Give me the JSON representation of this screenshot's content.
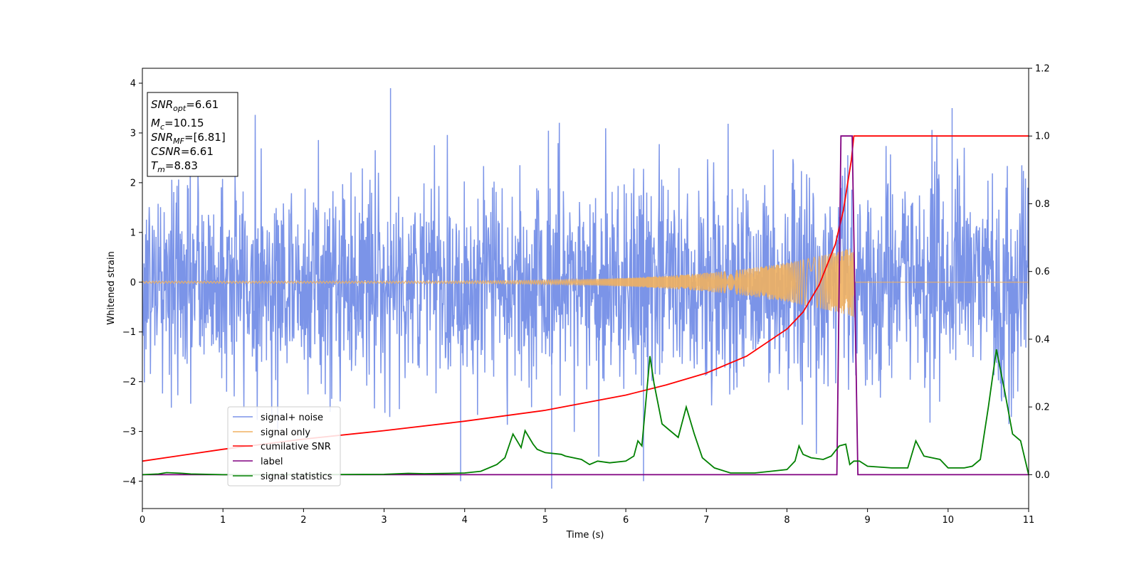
{
  "chart_data": {
    "type": "line",
    "xlabel": "Time (s)",
    "ylabel": "Whitened strain",
    "xlim": [
      0,
      11
    ],
    "ylim_left": [
      -4.55,
      4.3
    ],
    "ylim_right": [
      -0.1,
      1.2
    ],
    "x_ticks": [
      0,
      1,
      2,
      3,
      4,
      5,
      6,
      7,
      8,
      9,
      10,
      11
    ],
    "y_ticks_left": [
      -4,
      -3,
      -2,
      -1,
      0,
      1,
      2,
      3,
      4
    ],
    "y_ticks_right": [
      0.0,
      0.2,
      0.4,
      0.6,
      0.8,
      1.0,
      1.2
    ],
    "legend_location": "lower-left",
    "info_box": {
      "snr_opt": {
        "name": "SNR",
        "sub": "opt",
        "value": "=6.61"
      },
      "mc": {
        "name": "M",
        "sub": "c",
        "value": "=10.15"
      },
      "snr_mf": {
        "name": "SNR",
        "sub": "MF",
        "value": "=[6.81]"
      },
      "csnr": {
        "name": "CSNR",
        "sub": "",
        "value": "=6.61"
      },
      "tm": {
        "name": "T",
        "sub": "m",
        "value": "=8.83"
      }
    },
    "series": [
      {
        "name": "signal+ noise",
        "axis": "left",
        "color": "#7b94e8",
        "description_range": [
          -4.2,
          3.9
        ],
        "noise_std": 1.05,
        "peaks": [
          {
            "x": 3.08,
            "y": 3.9
          },
          {
            "x": 5.08,
            "y": -4.15
          },
          {
            "x": 3.95,
            "y": -4.0
          },
          {
            "x": 6.22,
            "y": -4.0
          },
          {
            "x": 10.05,
            "y": 3.5
          }
        ]
      },
      {
        "name": "signal only",
        "axis": "left",
        "color": "#f0b060",
        "x_end": 8.83,
        "amplitude_start": 0.02,
        "amplitude_end": 0.7
      },
      {
        "name": "cumilative SNR",
        "axis": "right",
        "color": "#ff0000",
        "x": [
          0,
          1,
          2,
          3,
          4,
          5,
          6,
          6.5,
          7,
          7.5,
          8,
          8.2,
          8.4,
          8.6,
          8.7,
          8.8,
          8.83,
          11
        ],
        "y": [
          0.04,
          0.075,
          0.105,
          0.13,
          0.158,
          0.19,
          0.235,
          0.265,
          0.3,
          0.35,
          0.43,
          0.48,
          0.56,
          0.68,
          0.78,
          0.93,
          1.0,
          1.0
        ]
      },
      {
        "name": "label",
        "axis": "right",
        "color": "#800080",
        "x": [
          0,
          8.62,
          8.67,
          8.81,
          8.88,
          11
        ],
        "y": [
          0,
          0,
          1,
          1,
          0,
          0
        ]
      },
      {
        "name": "signal statistics",
        "axis": "right",
        "color": "#008000",
        "x": [
          0,
          0.2,
          0.3,
          0.4,
          0.5,
          0.6,
          1.0,
          2.0,
          3.0,
          3.3,
          3.5,
          3.8,
          4.0,
          4.2,
          4.4,
          4.5,
          4.6,
          4.7,
          4.75,
          4.85,
          4.9,
          5.0,
          5.2,
          5.25,
          5.35,
          5.45,
          5.55,
          5.65,
          5.8,
          6.0,
          6.1,
          6.15,
          6.2,
          6.3,
          6.35,
          6.45,
          6.55,
          6.65,
          6.75,
          6.85,
          6.95,
          7.1,
          7.3,
          7.6,
          7.8,
          8.0,
          8.1,
          8.15,
          8.2,
          8.3,
          8.45,
          8.55,
          8.65,
          8.73,
          8.78,
          8.83,
          8.9,
          9.0,
          9.3,
          9.5,
          9.6,
          9.7,
          9.8,
          9.9,
          10.0,
          10.1,
          10.2,
          10.3,
          10.4,
          10.5,
          10.6,
          10.7,
          10.8,
          10.9,
          11.0
        ],
        "y": [
          0.0,
          0.002,
          0.006,
          0.005,
          0.004,
          0.002,
          0.0,
          0.0,
          0.001,
          0.004,
          0.003,
          0.004,
          0.005,
          0.01,
          0.03,
          0.05,
          0.12,
          0.08,
          0.13,
          0.09,
          0.075,
          0.065,
          0.06,
          0.055,
          0.05,
          0.045,
          0.03,
          0.04,
          0.035,
          0.04,
          0.055,
          0.1,
          0.085,
          0.35,
          0.27,
          0.15,
          0.13,
          0.11,
          0.2,
          0.12,
          0.05,
          0.02,
          0.005,
          0.005,
          0.01,
          0.015,
          0.04,
          0.085,
          0.06,
          0.05,
          0.045,
          0.055,
          0.085,
          0.09,
          0.03,
          0.04,
          0.04,
          0.025,
          0.02,
          0.02,
          0.1,
          0.055,
          0.05,
          0.045,
          0.02,
          0.02,
          0.02,
          0.025,
          0.045,
          0.2,
          0.37,
          0.25,
          0.12,
          0.1,
          0.0
        ]
      }
    ]
  }
}
